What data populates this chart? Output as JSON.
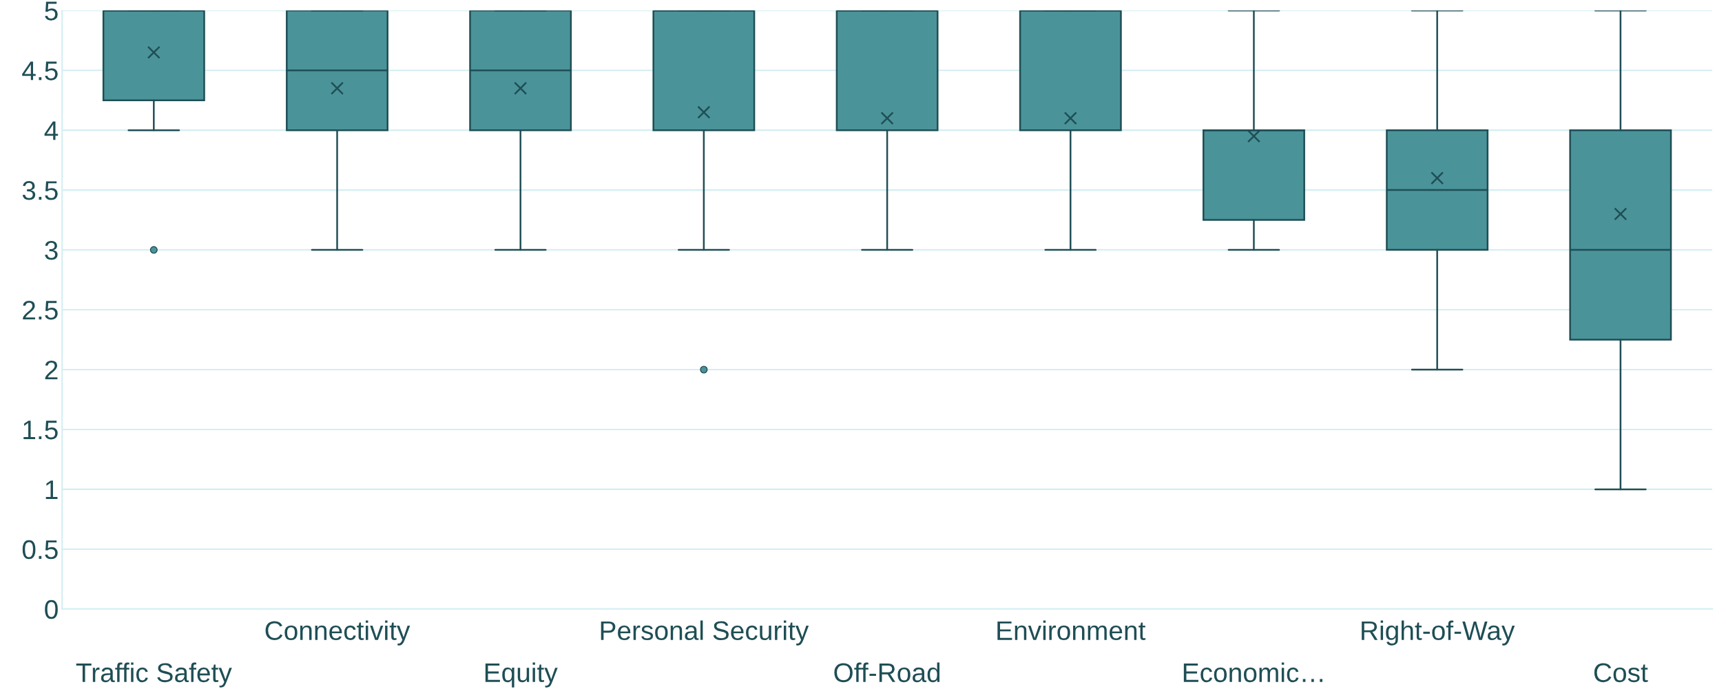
{
  "chart_data": {
    "type": "box",
    "categories": [
      "Traffic Safety",
      "Connectivity",
      "Equity",
      "Personal Security",
      "Off-Road",
      "Environment",
      "Economic…",
      "Right-of-Way",
      "Cost"
    ],
    "series": [
      {
        "color": "#4a9399",
        "boxes": [
          {
            "low": 4,
            "q1": 4.25,
            "median": 5,
            "q3": 5,
            "high": 5,
            "mean": 4.65,
            "outliers": [
              3
            ]
          },
          {
            "low": 3,
            "q1": 4,
            "median": 4.5,
            "q3": 5,
            "high": 5,
            "mean": 4.35
          },
          {
            "low": 3,
            "q1": 4,
            "median": 4.5,
            "q3": 5,
            "high": 5,
            "mean": 4.35
          },
          {
            "low": 3,
            "q1": 4,
            "median": 5,
            "q3": 5,
            "high": 5,
            "mean": 4.15,
            "outliers": [
              2
            ]
          },
          {
            "low": 3,
            "q1": 4,
            "median": 5,
            "q3": 5,
            "high": 5,
            "mean": 4.1
          },
          {
            "low": 3,
            "q1": 4,
            "median": 5,
            "q3": 5,
            "high": 5,
            "mean": 4.1
          },
          {
            "low": 3,
            "q1": 3.25,
            "median": 4,
            "q3": 4,
            "high": 5,
            "mean": 3.95
          },
          {
            "low": 2,
            "q1": 3,
            "median": 3.5,
            "q3": 4,
            "high": 5,
            "mean": 3.6
          },
          {
            "low": 1,
            "q1": 2.25,
            "median": 3,
            "q3": 4,
            "high": 5,
            "mean": 3.3
          }
        ]
      }
    ],
    "ylim": [
      0,
      5
    ],
    "yticks": [
      0,
      0.5,
      1,
      1.5,
      2,
      2.5,
      3,
      3.5,
      4,
      4.5,
      5
    ],
    "grid": "y"
  }
}
